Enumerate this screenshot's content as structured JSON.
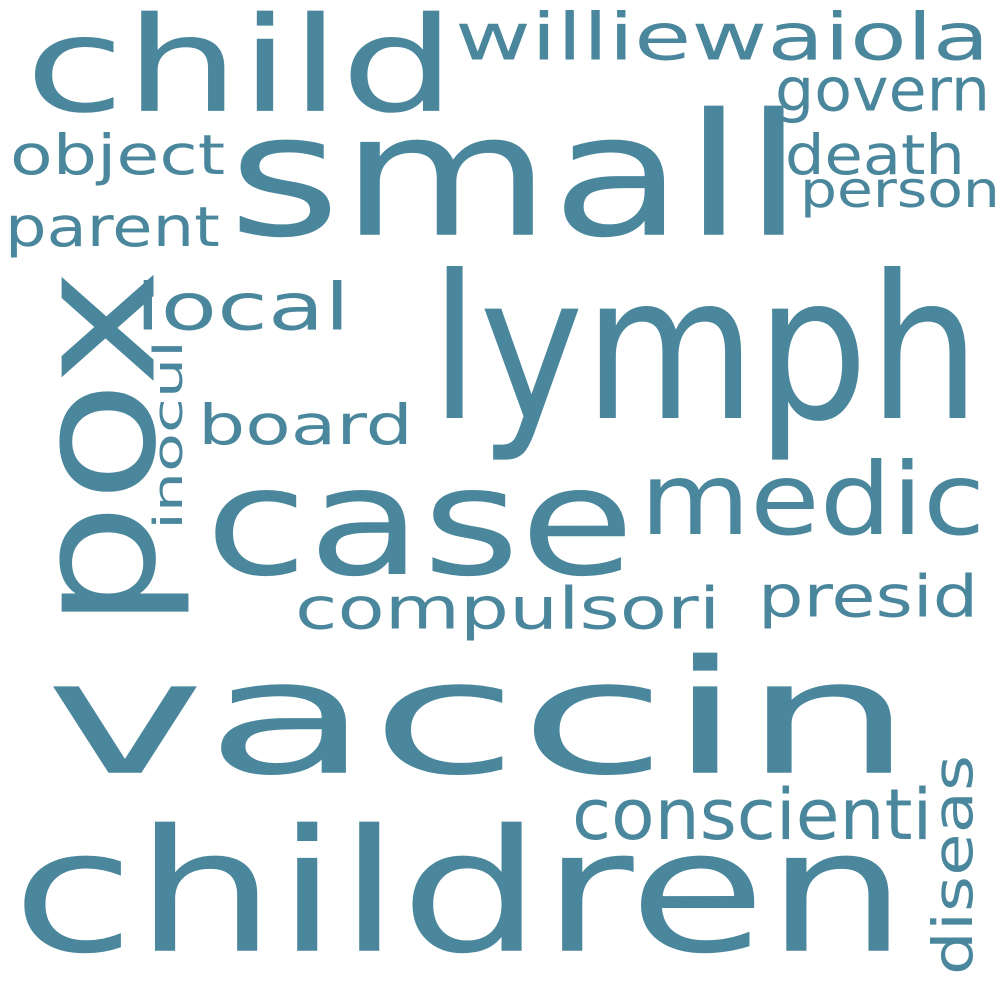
{
  "word_cloud": {
    "color": "#4b879c",
    "background": "#ffffff",
    "words": [
      {
        "id": "vaccin",
        "text": "vaccin",
        "vertical": false
      },
      {
        "id": "children",
        "text": "children",
        "vertical": false
      },
      {
        "id": "small",
        "text": "small",
        "vertical": false
      },
      {
        "id": "pox",
        "text": "pox",
        "vertical": true
      },
      {
        "id": "lymph",
        "text": "lymph",
        "vertical": false
      },
      {
        "id": "case",
        "text": "case",
        "vertical": false
      },
      {
        "id": "child",
        "text": "child",
        "vertical": false
      },
      {
        "id": "medic",
        "text": "medic",
        "vertical": false
      },
      {
        "id": "williewaiola",
        "text": "williewaiola",
        "vertical": false
      },
      {
        "id": "board",
        "text": "board",
        "vertical": false
      },
      {
        "id": "local",
        "text": "local",
        "vertical": false
      },
      {
        "id": "compulsori",
        "text": "compulsori",
        "vertical": false
      },
      {
        "id": "presid",
        "text": "presid",
        "vertical": false
      },
      {
        "id": "conscienti",
        "text": "conscienti",
        "vertical": false
      },
      {
        "id": "govern",
        "text": "govern",
        "vertical": false
      },
      {
        "id": "death",
        "text": "death",
        "vertical": false
      },
      {
        "id": "object",
        "text": "object",
        "vertical": false
      },
      {
        "id": "parent",
        "text": "parent",
        "vertical": false
      },
      {
        "id": "person",
        "text": "person",
        "vertical": false
      },
      {
        "id": "diseas",
        "text": "diseas",
        "vertical": true
      },
      {
        "id": "inocul",
        "text": "inocul",
        "vertical": true
      }
    ]
  }
}
